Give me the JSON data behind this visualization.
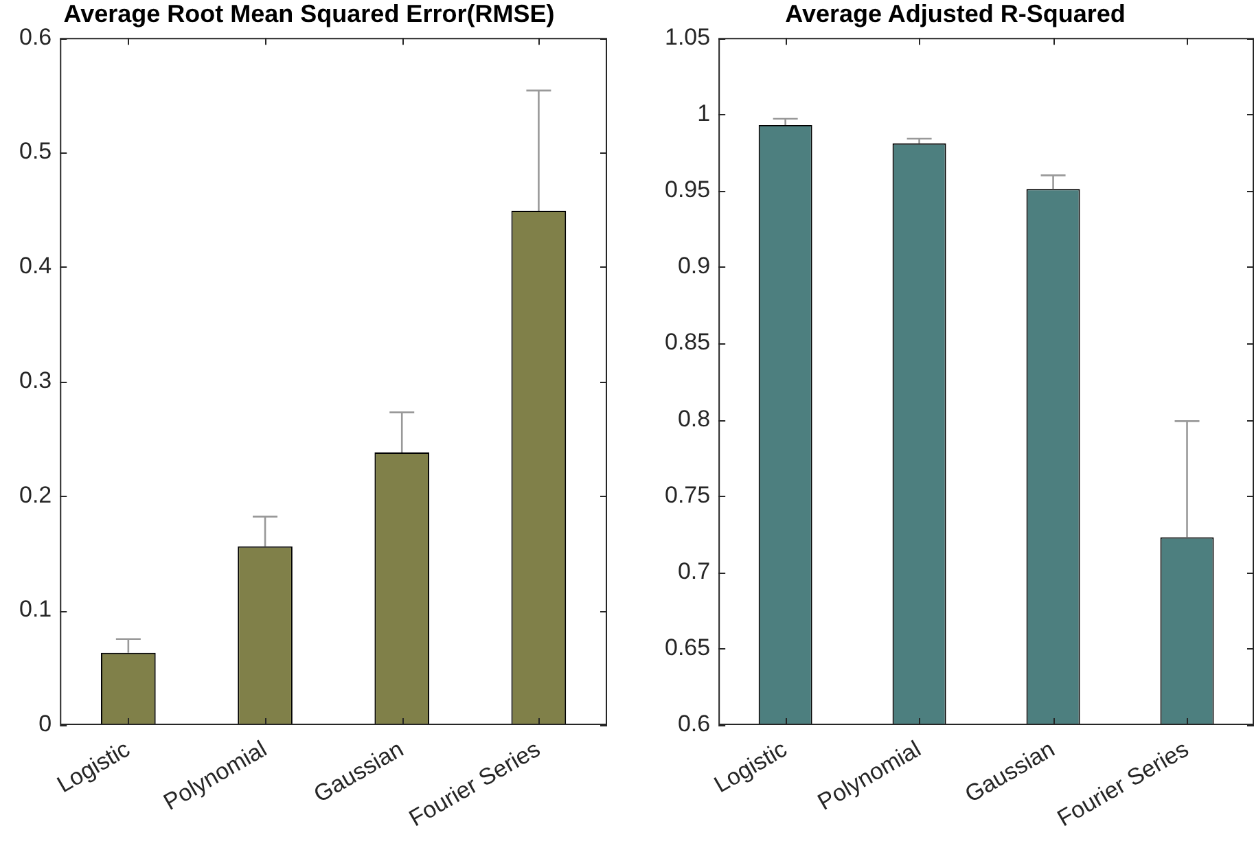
{
  "chart_data": [
    {
      "type": "bar",
      "title": "Average Root Mean Squared Error(RMSE)",
      "categories": [
        "Logistic",
        "Polynomial",
        "Gaussian",
        "Fourier Series"
      ],
      "values": [
        0.063,
        0.156,
        0.238,
        0.449
      ],
      "color": "#808049",
      "errors": [
        [
          0.063,
          0.075
        ],
        [
          0.156,
          0.182
        ],
        [
          0.238,
          0.273
        ],
        [
          0.449,
          0.554
        ]
      ],
      "ylim": [
        0,
        0.6
      ],
      "yticks": [
        0,
        0.1,
        0.2,
        0.3,
        0.4,
        0.5,
        0.6
      ]
    },
    {
      "type": "bar",
      "title": "Average Adjusted R-Squared",
      "categories": [
        "Logistic",
        "Polynomial",
        "Gaussian",
        "Fourier Series"
      ],
      "values": [
        0.993,
        0.981,
        0.951,
        0.723
      ],
      "color": "#4d7f7f",
      "errors": [
        [
          0.993,
          0.997
        ],
        [
          0.981,
          0.984
        ],
        [
          0.951,
          0.96
        ],
        [
          0.723,
          0.799
        ]
      ],
      "ylim": [
        0.6,
        1.05
      ],
      "yticks": [
        0.6,
        0.65,
        0.7,
        0.75,
        0.8,
        0.85,
        0.9,
        0.95,
        1,
        1.05
      ]
    }
  ]
}
